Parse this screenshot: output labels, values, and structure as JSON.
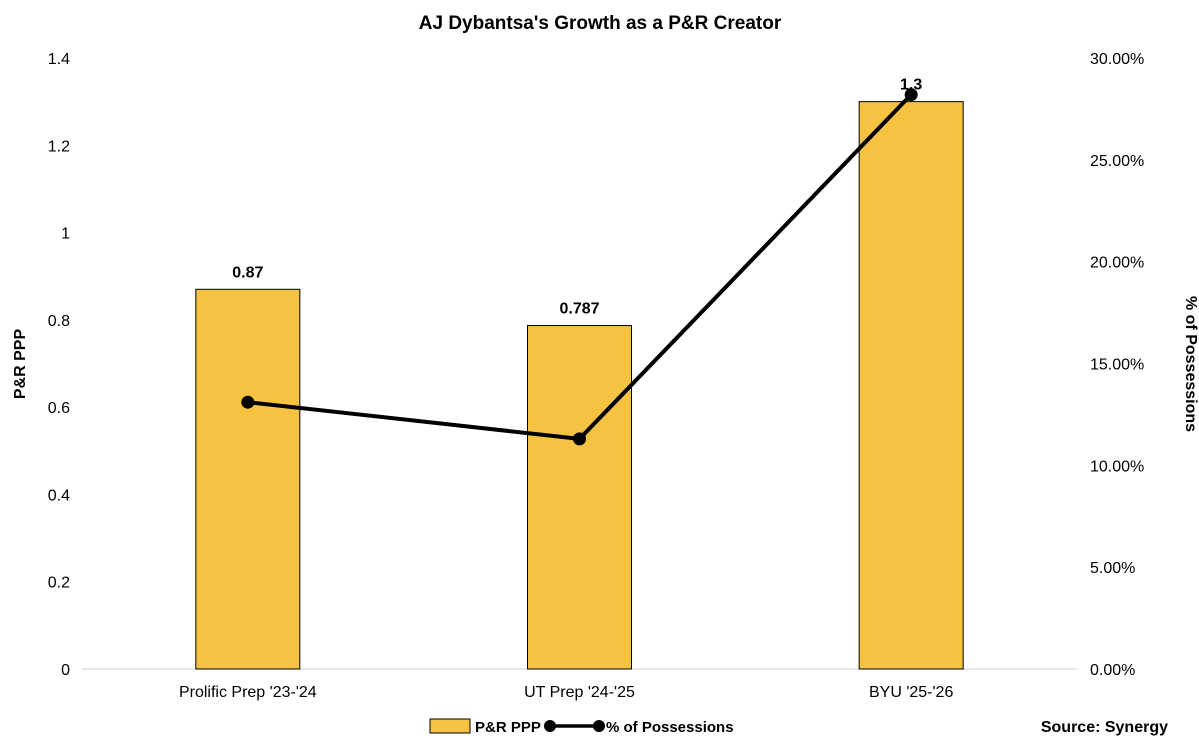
{
  "chart_data": {
    "type": "bar",
    "title": "AJ Dybantsa's Growth as a P&R Creator",
    "categories": [
      "Prolific Prep '23-'24",
      "UT Prep '24-'25",
      "BYU '25-'26"
    ],
    "series": [
      {
        "name": "P&R PPP",
        "type": "bar",
        "axis": "left",
        "values": [
          0.87,
          0.787,
          1.3
        ],
        "data_labels": [
          "0.87",
          "0.787",
          "1.3"
        ],
        "color": "#F5C242"
      },
      {
        "name": "% of Possessions",
        "type": "line",
        "axis": "right",
        "values": [
          0.131,
          0.113,
          0.282
        ],
        "color": "#000000"
      }
    ],
    "ylabel": "P&R PPP",
    "ylim": [
      0,
      1.4
    ],
    "yticks": [
      "0",
      "0.2",
      "0.4",
      "0.6",
      "0.8",
      "1",
      "1.2",
      "1.4"
    ],
    "y2label": "% of Possessions",
    "y2lim": [
      0,
      0.3
    ],
    "y2ticks": [
      "0.00%",
      "5.00%",
      "10.00%",
      "15.00%",
      "20.00%",
      "25.00%",
      "30.00%"
    ],
    "grid": false,
    "legend_position": "bottom",
    "source": "Source: Synergy"
  }
}
